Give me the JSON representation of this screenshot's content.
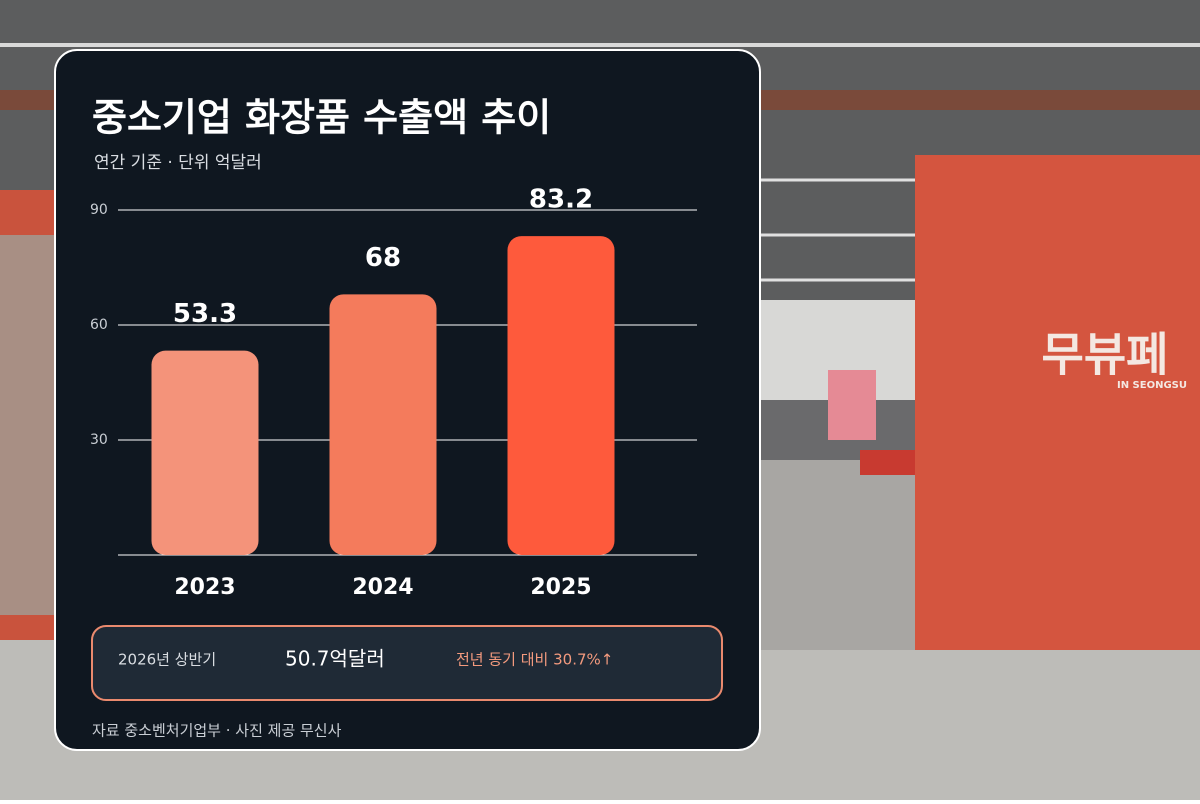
{
  "chart_data": {
    "type": "bar",
    "title": "중소기업 화장품 수출액 추이",
    "subtitle": "연간 기준 · 단위 억달러",
    "categories": [
      "2023",
      "2024",
      "2025"
    ],
    "values": [
      53.3,
      68,
      83.2
    ],
    "colors": [
      "#f4937a",
      "#f47b5c",
      "#fe5a3c"
    ],
    "ylim": [
      0,
      90
    ],
    "yticks": [
      30,
      60,
      90
    ],
    "grid": true,
    "note": {
      "period": "2026년 상반기",
      "amount": "50.7억달러",
      "change": "전년 동기 대비 30.7%↑"
    },
    "source": "자료 중소벤처기업부 · 사진 제공 무신사"
  },
  "background": {
    "sign": "무뷰페",
    "sign_sub": "IN SEONGSU"
  }
}
